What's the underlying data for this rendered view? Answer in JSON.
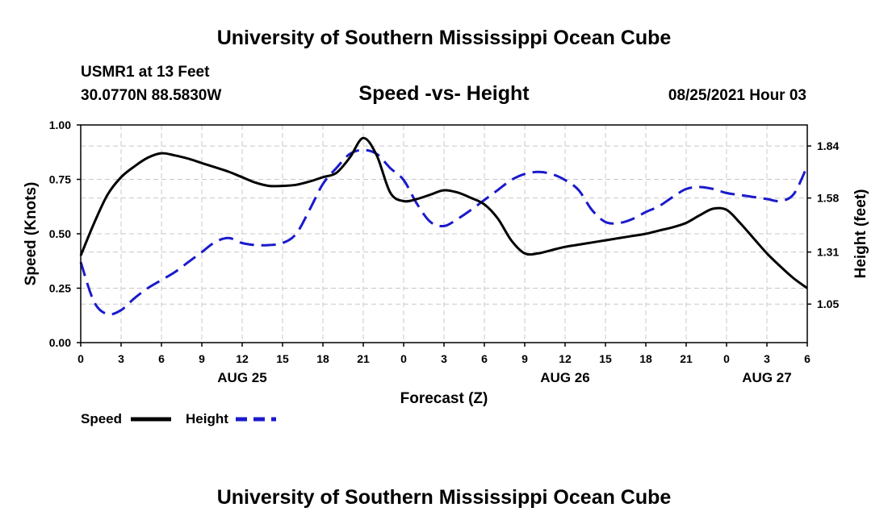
{
  "page": {
    "top_title": "University of Southern Mississippi Ocean Cube",
    "bottom_title": "University of Southern Mississippi Ocean Cube",
    "station": "USMR1 at 13 Feet",
    "coords": "30.0770N  88.5830W",
    "datetime": "08/25/2021 Hour 03"
  },
  "chart_data": {
    "type": "line",
    "title": "Speed -vs- Height",
    "xlabel": "Forecast (Z)",
    "ylabel": "Speed (Knots)",
    "y2label": "Height (feet)",
    "x_tick_labels": [
      "0",
      "3",
      "6",
      "9",
      "12",
      "15",
      "18",
      "21",
      "0",
      "3",
      "6",
      "9",
      "12",
      "15",
      "18",
      "21",
      "0",
      "3",
      "6"
    ],
    "date_labels": [
      {
        "label": "AUG 25",
        "hour_index": 12
      },
      {
        "label": "AUG 26",
        "hour_index": 36
      },
      {
        "label": "AUG 27",
        "hour_index": 51
      }
    ],
    "xlim": [
      0,
      54
    ],
    "ylim": [
      0,
      1.0
    ],
    "y_ticks": [
      "0.00",
      "0.25",
      "0.50",
      "0.75",
      "1.00"
    ],
    "y2lim": [
      0.8575,
      1.945
    ],
    "y2_ticks": [
      "1.05",
      "1.31",
      "1.58",
      "1.84"
    ],
    "grid": true,
    "legend": {
      "speed": "Speed",
      "height": "Height",
      "placement": "bottom-left"
    },
    "series": [
      {
        "name": "Speed",
        "axis": "left",
        "color": "#000000",
        "style": "solid",
        "x": [
          0,
          1,
          2,
          3,
          4,
          5,
          6,
          7,
          8,
          9,
          10,
          11,
          12,
          13,
          14,
          15,
          16,
          17,
          18,
          19,
          20,
          21,
          22,
          23,
          24,
          25,
          26,
          27,
          28,
          29,
          30,
          31,
          32,
          33,
          34,
          35,
          36,
          37,
          38,
          39,
          40,
          41,
          42,
          43,
          44,
          45,
          46,
          47,
          48,
          49,
          50,
          51,
          52,
          53,
          54
        ],
        "values": [
          0.4,
          0.55,
          0.68,
          0.76,
          0.81,
          0.85,
          0.87,
          0.86,
          0.845,
          0.825,
          0.805,
          0.785,
          0.76,
          0.735,
          0.72,
          0.72,
          0.725,
          0.74,
          0.76,
          0.78,
          0.85,
          0.94,
          0.86,
          0.69,
          0.65,
          0.66,
          0.68,
          0.7,
          0.69,
          0.665,
          0.635,
          0.57,
          0.47,
          0.41,
          0.41,
          0.425,
          0.44,
          0.45,
          0.46,
          0.47,
          0.48,
          0.49,
          0.5,
          0.515,
          0.53,
          0.55,
          0.585,
          0.615,
          0.61,
          0.55,
          0.48,
          0.41,
          0.35,
          0.295,
          0.25
        ]
      },
      {
        "name": "Height",
        "axis": "right",
        "color": "#1a1acc",
        "style": "dashed",
        "x": [
          0,
          1,
          2,
          3,
          4,
          5,
          6,
          7,
          8,
          9,
          10,
          11,
          12,
          13,
          14,
          15,
          16,
          17,
          18,
          19,
          20,
          21,
          22,
          23,
          24,
          25,
          26,
          27,
          28,
          29,
          30,
          31,
          32,
          33,
          34,
          35,
          36,
          37,
          38,
          39,
          40,
          41,
          42,
          43,
          44,
          45,
          46,
          47,
          48,
          49,
          50,
          51,
          52,
          53,
          54
        ],
        "values": [
          1.26,
          1.06,
          1.0,
          1.02,
          1.08,
          1.13,
          1.17,
          1.21,
          1.26,
          1.31,
          1.36,
          1.38,
          1.355,
          1.345,
          1.345,
          1.355,
          1.4,
          1.52,
          1.65,
          1.73,
          1.8,
          1.82,
          1.8,
          1.73,
          1.67,
          1.55,
          1.46,
          1.44,
          1.475,
          1.52,
          1.57,
          1.62,
          1.67,
          1.7,
          1.71,
          1.7,
          1.67,
          1.62,
          1.52,
          1.46,
          1.455,
          1.475,
          1.51,
          1.54,
          1.585,
          1.625,
          1.635,
          1.625,
          1.605,
          1.595,
          1.585,
          1.575,
          1.565,
          1.6,
          1.74
        ]
      }
    ]
  }
}
